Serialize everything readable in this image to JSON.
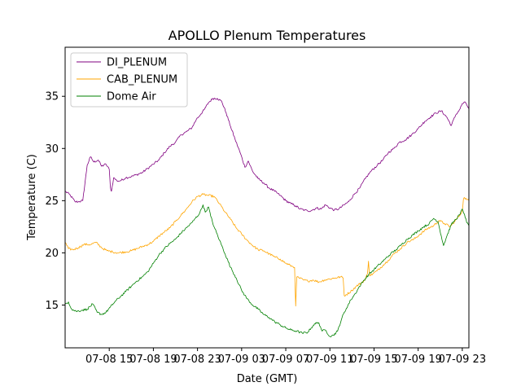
{
  "chart_data": {
    "type": "line",
    "title": "APOLLO Plenum Temperatures",
    "xlabel": "Date (GMT)",
    "ylabel": "Temperature (C)",
    "x_unit": "hours since 07-08 11:00",
    "xlim": [
      0,
      36.6
    ],
    "ylim": [
      10.9,
      39.7
    ],
    "x_ticks": [
      {
        "x": 4,
        "label": "07-08 15"
      },
      {
        "x": 8,
        "label": "07-08 19"
      },
      {
        "x": 12,
        "label": "07-08 23"
      },
      {
        "x": 16,
        "label": "07-09 03"
      },
      {
        "x": 20,
        "label": "07-09 07"
      },
      {
        "x": 24,
        "label": "07-09 11"
      },
      {
        "x": 28,
        "label": "07-09 15"
      },
      {
        "x": 32,
        "label": "07-09 19"
      },
      {
        "x": 36,
        "label": "07-09 23"
      }
    ],
    "y_ticks": [
      {
        "y": 15,
        "label": "15"
      },
      {
        "y": 20,
        "label": "20"
      },
      {
        "y": 25,
        "label": "25"
      },
      {
        "y": 30,
        "label": "30"
      },
      {
        "y": 35,
        "label": "35"
      }
    ],
    "legend": {
      "location": "upper-left"
    },
    "series": [
      {
        "name": "DI_PLENUM",
        "color": "#800080",
        "x": [
          0,
          0.4,
          0.9,
          1.2,
          1.6,
          2.0,
          2.3,
          2.6,
          3.0,
          3.3,
          3.7,
          4.0,
          4.1,
          4.2,
          4.4,
          4.7,
          5.0,
          5.5,
          6.0,
          6.5,
          7.0,
          7.5,
          8.0,
          8.5,
          9.0,
          9.5,
          10.0,
          10.5,
          11.0,
          11.5,
          11.9,
          12.3,
          12.6,
          13.0,
          13.4,
          13.8,
          14.2,
          14.6,
          15.0,
          15.4,
          15.9,
          16.3,
          16.6,
          17.0,
          17.5,
          18.0,
          18.5,
          19.0,
          19.5,
          20.0,
          20.5,
          20.9,
          21.3,
          21.7,
          22.0,
          22.4,
          22.8,
          23.2,
          23.6,
          24.0,
          24.4,
          24.8,
          25.3,
          25.7,
          26.2,
          26.7,
          27.2,
          27.7,
          28.3,
          28.8,
          29.3,
          29.8,
          30.3,
          30.8,
          31.4,
          32.0,
          32.6,
          33.1,
          33.6,
          34.1,
          34.6,
          35.0,
          35.4,
          35.8,
          36.0,
          36.3,
          36.6
        ],
        "y": [
          25.9,
          25.6,
          24.9,
          24.9,
          25.0,
          28.4,
          29.2,
          28.7,
          28.9,
          28.3,
          28.5,
          28.0,
          26.3,
          25.9,
          27.2,
          26.9,
          26.9,
          27.2,
          27.3,
          27.5,
          27.7,
          28.1,
          28.5,
          28.9,
          29.6,
          30.2,
          30.6,
          31.3,
          31.6,
          32.0,
          32.8,
          33.3,
          33.7,
          34.4,
          34.8,
          34.8,
          34.5,
          33.4,
          32.1,
          30.9,
          29.5,
          28.2,
          28.8,
          27.8,
          27.1,
          26.7,
          26.2,
          25.9,
          25.5,
          25.0,
          24.7,
          24.5,
          24.2,
          24.1,
          24.0,
          24.1,
          24.3,
          24.2,
          24.6,
          24.3,
          24.1,
          24.2,
          24.6,
          24.9,
          25.6,
          26.2,
          27.1,
          27.8,
          28.4,
          28.9,
          29.6,
          30.0,
          30.6,
          30.8,
          31.3,
          31.9,
          32.6,
          33.0,
          33.4,
          33.6,
          33.0,
          32.2,
          33.2,
          33.8,
          34.3,
          34.4,
          33.8
        ]
      },
      {
        "name": "CAB_PLENUM",
        "color": "#FFA500",
        "x": [
          0,
          0.3,
          0.7,
          1.2,
          1.7,
          2.3,
          2.8,
          3.3,
          3.8,
          4.3,
          4.8,
          5.5,
          6.0,
          6.5,
          7.0,
          7.5,
          8.0,
          8.5,
          9.0,
          9.5,
          10.0,
          10.5,
          11.0,
          11.5,
          12.0,
          12.5,
          13.0,
          13.5,
          14.0,
          14.5,
          15.0,
          15.5,
          16.0,
          16.5,
          17.0,
          17.5,
          18.0,
          18.5,
          19.0,
          19.5,
          20.0,
          20.4,
          20.6,
          20.8,
          20.9,
          21.0,
          21.2,
          21.6,
          22.0,
          22.5,
          23.0,
          23.5,
          24.0,
          24.5,
          25.0,
          25.2,
          25.3,
          25.5,
          26.0,
          26.4,
          26.8,
          27.2,
          27.4,
          27.5,
          27.6,
          27.9,
          28.3,
          28.8,
          29.3,
          29.8,
          30.4,
          31.0,
          31.6,
          32.2,
          32.8,
          33.4,
          33.9,
          34.4,
          34.9,
          35.3,
          35.7,
          36.0,
          36.1,
          36.2,
          36.4,
          36.6
        ],
        "y": [
          21.0,
          20.4,
          20.3,
          20.5,
          20.8,
          20.8,
          21.0,
          20.5,
          20.2,
          20.1,
          20.0,
          20.1,
          20.2,
          20.4,
          20.6,
          20.8,
          21.1,
          21.6,
          22.0,
          22.4,
          23.0,
          23.6,
          24.2,
          24.9,
          25.4,
          25.6,
          25.5,
          25.4,
          24.7,
          23.9,
          23.2,
          22.4,
          21.8,
          21.2,
          20.7,
          20.3,
          20.2,
          19.9,
          19.6,
          19.4,
          19.0,
          18.8,
          18.7,
          18.6,
          14.9,
          17.7,
          17.6,
          17.4,
          17.3,
          17.4,
          17.2,
          17.4,
          17.5,
          17.6,
          17.7,
          17.6,
          15.9,
          16.0,
          16.4,
          16.8,
          17.1,
          17.4,
          18.0,
          19.2,
          17.8,
          18.0,
          18.3,
          18.8,
          19.3,
          19.9,
          20.4,
          21.0,
          21.3,
          21.8,
          22.3,
          22.6,
          23.1,
          22.8,
          22.5,
          23.0,
          23.5,
          24.0,
          25.1,
          25.3,
          25.1,
          25.0
        ]
      },
      {
        "name": "Dome Air",
        "color": "#008000",
        "x": [
          0,
          0.3,
          0.6,
          1.0,
          1.5,
          2.0,
          2.5,
          2.9,
          3.3,
          3.7,
          4.1,
          4.5,
          5.0,
          5.5,
          6.0,
          6.5,
          7.0,
          7.5,
          8.0,
          8.5,
          9.0,
          9.5,
          10.0,
          10.5,
          11.0,
          11.5,
          11.8,
          12.2,
          12.5,
          12.7,
          13.0,
          13.2,
          13.5,
          14.0,
          14.5,
          15.0,
          15.5,
          16.0,
          16.5,
          17.0,
          17.5,
          18.0,
          18.5,
          19.0,
          19.5,
          20.0,
          20.5,
          21.0,
          21.5,
          22.0,
          22.3,
          22.6,
          23.0,
          23.3,
          23.6,
          24.0,
          24.3,
          24.7,
          25.1,
          25.5,
          25.9,
          26.3,
          26.7,
          27.1,
          27.5,
          28.0,
          28.5,
          29.0,
          29.5,
          30.0,
          30.5,
          31.0,
          31.5,
          32.0,
          32.5,
          33.0,
          33.4,
          33.8,
          34.1,
          34.3,
          34.6,
          35.0,
          35.4,
          35.8,
          36.0,
          36.2,
          36.4,
          36.6
        ],
        "y": [
          15.1,
          15.3,
          14.6,
          14.4,
          14.5,
          14.6,
          15.1,
          14.3,
          14.1,
          14.3,
          14.8,
          15.3,
          15.8,
          16.3,
          16.8,
          17.3,
          17.7,
          18.2,
          19.0,
          19.8,
          20.4,
          20.9,
          21.3,
          21.9,
          22.4,
          22.9,
          23.3,
          23.8,
          24.6,
          23.9,
          24.4,
          23.5,
          22.5,
          21.2,
          19.9,
          18.6,
          17.6,
          16.4,
          15.6,
          15.0,
          14.6,
          14.1,
          13.8,
          13.4,
          13.1,
          12.8,
          12.6,
          12.5,
          12.3,
          12.4,
          12.8,
          13.2,
          13.3,
          12.5,
          12.6,
          12.0,
          12.1,
          12.5,
          13.8,
          14.7,
          15.5,
          16.1,
          16.8,
          17.4,
          17.9,
          18.4,
          18.9,
          19.4,
          19.9,
          20.3,
          20.8,
          21.3,
          21.7,
          22.1,
          22.5,
          22.8,
          23.3,
          23.0,
          21.6,
          20.7,
          21.6,
          22.7,
          23.2,
          23.7,
          24.2,
          23.7,
          22.9,
          22.6
        ]
      }
    ]
  }
}
